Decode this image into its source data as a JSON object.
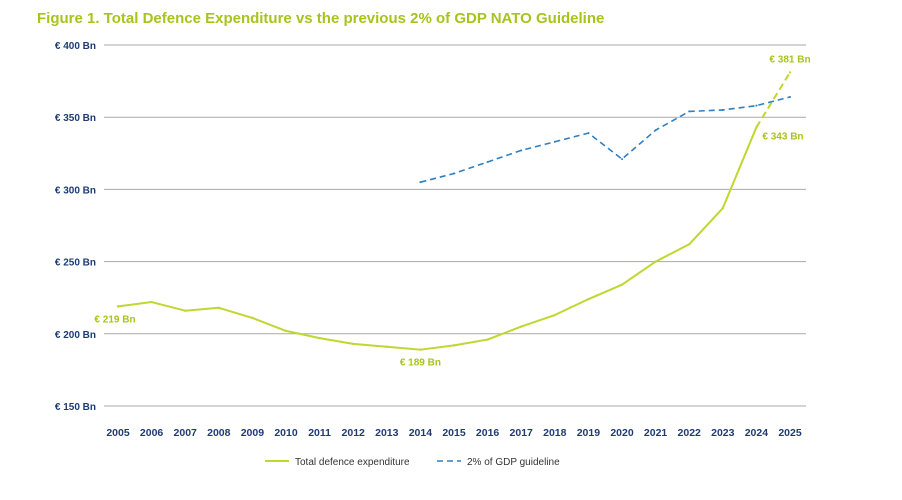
{
  "colors": {
    "accent": "#a8c41c",
    "total_line": "#bfd730",
    "guideline_line": "#2f7fc1",
    "axis_text": "#1f3b73",
    "grid": "#aaaaaa"
  },
  "chart_data": {
    "type": "line",
    "title": "Figure 1. Total Defence Expenditure vs the previous 2% of GDP NATO Guideline",
    "xlabel": "",
    "ylabel": "",
    "ylim": [
      150,
      400
    ],
    "yticks": [
      150,
      200,
      250,
      300,
      350,
      400
    ],
    "ytick_labels": [
      "€ 150 Bn",
      "€ 200 Bn",
      "€ 250 Bn",
      "€ 300 Bn",
      "€ 350 Bn",
      "€ 400 Bn"
    ],
    "categories": [
      "2005",
      "2006",
      "2007",
      "2008",
      "2009",
      "2010",
      "2011",
      "2012",
      "2013",
      "2014",
      "2015",
      "2016",
      "2017",
      "2018",
      "2019",
      "2020",
      "2021",
      "2022",
      "2023",
      "2024",
      "2025"
    ],
    "series": [
      {
        "name": "Total defence expenditure",
        "style": "solid",
        "values": [
          219,
          222,
          216,
          218,
          211,
          202,
          197,
          193,
          191,
          189,
          192,
          196,
          205,
          213,
          224,
          234,
          250,
          262,
          287,
          343,
          381
        ],
        "dashed_from_index": 19
      },
      {
        "name": "2% of GDP guideline",
        "style": "dashed",
        "values": [
          null,
          null,
          null,
          null,
          null,
          null,
          null,
          null,
          null,
          305,
          311,
          319,
          327,
          333,
          339,
          321,
          341,
          354,
          355,
          358,
          364
        ]
      }
    ],
    "annotations": [
      {
        "text": "€ 219 Bn",
        "index": 0,
        "value": 219,
        "position": "below"
      },
      {
        "text": "€ 189 Bn",
        "index": 9,
        "value": 189,
        "position": "below"
      },
      {
        "text": "€ 343 Bn",
        "index": 19,
        "value": 343,
        "position": "right"
      },
      {
        "text": "€ 381 Bn",
        "index": 20,
        "value": 381,
        "position": "above"
      }
    ],
    "legend": [
      "Total defence expenditure",
      "2% of GDP guideline"
    ],
    "legend_position": "bottom-center",
    "grid": true
  }
}
